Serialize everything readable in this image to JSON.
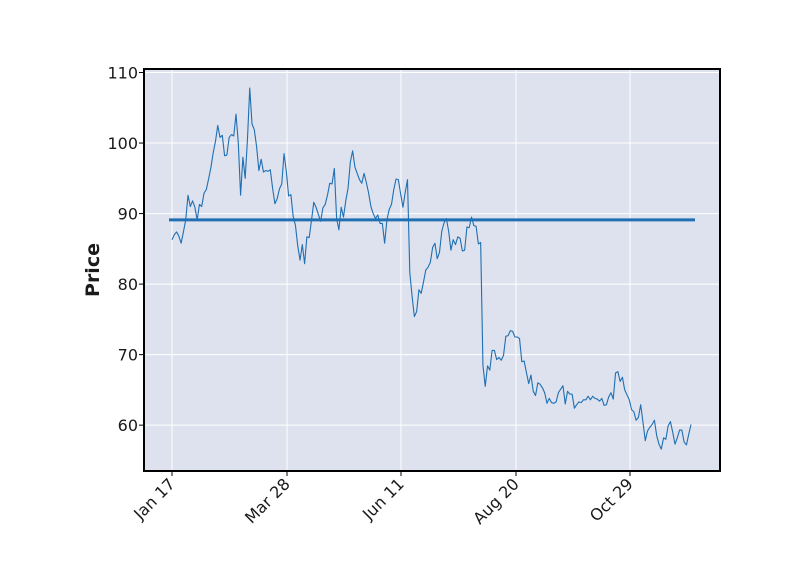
{
  "chart_data": {
    "type": "line",
    "title": "",
    "xlabel": "",
    "ylabel": "Price",
    "ylim": [
      53.5,
      110.5
    ],
    "yticks": [
      60,
      70,
      80,
      90,
      100,
      110
    ],
    "xticks": [
      "Jan 17",
      "Mar 28",
      "Jun 11",
      "Aug 20",
      "Oct 29"
    ],
    "grid": true,
    "colors": {
      "plot_background": "#dde2ee",
      "series": "#1f6fb2",
      "grid": "#ffffff",
      "frame": "#000000"
    },
    "series": [
      {
        "kind": "price",
        "values": [
          86.3,
          87.0,
          87.4,
          86.8,
          85.8,
          87.4,
          89.1,
          92.6,
          91.0,
          91.8,
          90.9,
          89.1,
          91.3,
          91.0,
          92.9,
          93.4,
          94.9,
          96.5,
          98.6,
          100.2,
          102.5,
          100.8,
          101.1,
          98.2,
          98.3,
          100.8,
          101.2,
          101.0,
          104.1,
          100.0,
          92.6,
          98.0,
          95.0,
          100.5,
          107.8,
          102.7,
          101.9,
          99.5,
          96.1,
          97.7,
          95.9,
          96.1,
          96.0,
          96.2,
          93.6,
          91.4,
          92.1,
          93.5,
          94.2,
          98.5,
          96.0,
          92.5,
          92.7,
          89.6,
          88.3,
          85.4,
          83.4,
          85.6,
          82.9,
          86.7,
          86.6,
          89.0,
          91.6,
          90.9,
          89.9,
          88.9,
          90.8,
          91.3,
          92.6,
          94.3,
          94.2,
          96.4,
          89.3,
          87.7,
          90.9,
          89.5,
          91.8,
          93.6,
          97.3,
          98.9,
          96.6,
          95.7,
          94.8,
          94.3,
          95.7,
          94.4,
          92.9,
          91.0,
          90.0,
          89.3,
          89.8,
          88.6,
          88.6,
          85.8,
          89.1,
          90.6,
          91.3,
          93.4,
          94.9,
          94.8,
          92.8,
          90.9,
          93.0,
          94.8,
          81.7,
          78.3,
          75.4,
          76.1,
          79.2,
          78.7,
          80.3,
          82.0,
          82.4,
          83.1,
          85.2,
          85.8,
          83.6,
          84.5,
          87.5,
          88.7,
          89.3,
          87.5,
          84.8,
          86.3,
          85.6,
          86.7,
          86.5,
          84.7,
          84.8,
          88.1,
          88.0,
          89.5,
          88.3,
          88.2,
          85.7,
          85.9,
          68.5,
          65.5,
          68.4,
          67.8,
          70.6,
          70.6,
          69.3,
          69.6,
          69.2,
          69.9,
          72.6,
          72.7,
          73.4,
          73.3,
          72.5,
          72.5,
          72.3,
          69.0,
          69.1,
          67.5,
          65.9,
          67.1,
          64.8,
          64.2,
          66.0,
          65.8,
          65.3,
          64.6,
          63.1,
          63.8,
          63.2,
          63.1,
          63.3,
          64.6,
          65.1,
          65.6,
          63.0,
          64.8,
          64.4,
          64.4,
          62.4,
          62.9,
          63.3,
          63.2,
          63.6,
          63.6,
          64.1,
          63.6,
          64.1,
          63.8,
          63.7,
          63.4,
          63.8,
          62.8,
          62.9,
          64.0,
          64.6,
          63.7,
          67.4,
          67.6,
          66.2,
          66.8,
          65.0,
          64.3,
          63.6,
          62.2,
          61.9,
          60.7,
          61.1,
          62.9,
          60.4,
          57.8,
          59.2,
          59.7,
          60.1,
          60.7,
          58.5,
          57.3,
          56.6,
          58.2,
          58.0,
          59.9,
          60.5,
          59.0,
          57.3,
          58.2,
          59.3,
          59.3,
          57.6,
          57.2,
          58.7,
          60.1
        ]
      },
      {
        "kind": "average-line",
        "values": [
          89.1,
          89.1
        ]
      }
    ]
  }
}
